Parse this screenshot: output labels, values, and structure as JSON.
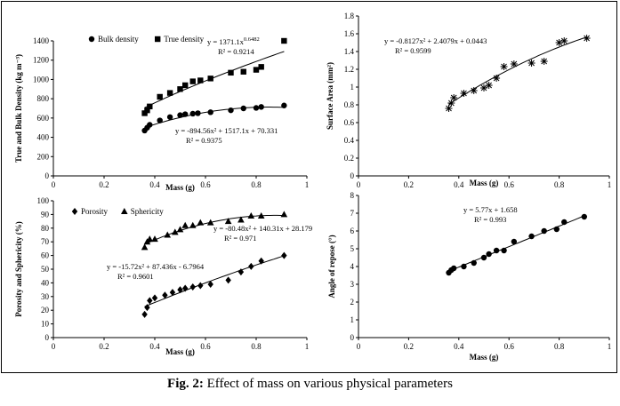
{
  "caption": {
    "label": "Fig. 2:",
    "text": " Effect of mass on various physical parameters"
  },
  "chart_data": [
    {
      "type": "scatter",
      "xlabel": "Mass (g)",
      "ylabel": "True and Bulk Density (kg m⁻³)",
      "xlim": [
        0,
        1
      ],
      "ylim": [
        0,
        1400
      ],
      "xticks": [
        "0",
        "0.2",
        "0.4",
        "0.6",
        "0.8",
        "1"
      ],
      "yticks": [
        "0",
        "200",
        "400",
        "600",
        "800",
        "1000",
        "1200",
        "1400"
      ],
      "grid": false,
      "legend": "top-left",
      "series": [
        {
          "name": "Bulk density",
          "marker": "circle",
          "x": [
            0.36,
            0.37,
            0.38,
            0.42,
            0.46,
            0.5,
            0.52,
            0.55,
            0.57,
            0.62,
            0.7,
            0.75,
            0.8,
            0.82,
            0.91
          ],
          "y": [
            470,
            500,
            530,
            575,
            610,
            630,
            640,
            645,
            650,
            660,
            680,
            700,
            705,
            715,
            730
          ],
          "fit": {
            "type": "poly2",
            "a": -894.56,
            "b": 1517.1,
            "c": 70.331
          }
        },
        {
          "name": "True density",
          "marker": "square",
          "x": [
            0.36,
            0.37,
            0.38,
            0.42,
            0.46,
            0.5,
            0.52,
            0.55,
            0.58,
            0.62,
            0.7,
            0.75,
            0.8,
            0.82,
            0.91
          ],
          "y": [
            650,
            680,
            720,
            820,
            860,
            900,
            940,
            980,
            990,
            1010,
            1070,
            1080,
            1100,
            1130,
            1400
          ],
          "fit": {
            "type": "power",
            "a": 1371.1,
            "b": 0.6482
          }
        }
      ],
      "annotations": [
        {
          "text": "y = 1371.1x",
          "sup": "0.6482",
          "line2": "R² = 0.9214"
        },
        {
          "text": "y = -894.56x² + 1517.1x + 70.331",
          "line2": "R² = 0.9375"
        }
      ]
    },
    {
      "type": "scatter",
      "xlabel": "Mass (g)",
      "ylabel": "Surface Area (mm²)",
      "xlim": [
        0,
        1
      ],
      "ylim": [
        0,
        1.8
      ],
      "xticks": [
        "0",
        "0.2",
        "0.4",
        "0.6",
        "0.8",
        "1"
      ],
      "yticks": [
        "0",
        "0.2",
        "0.4",
        "0.6",
        "0.8",
        "1",
        "1.2",
        "1.4",
        "1.6",
        "1.8"
      ],
      "grid": false,
      "series": [
        {
          "marker": "star",
          "x": [
            0.36,
            0.37,
            0.38,
            0.42,
            0.46,
            0.5,
            0.52,
            0.55,
            0.58,
            0.62,
            0.69,
            0.74,
            0.8,
            0.82,
            0.91
          ],
          "y": [
            0.76,
            0.82,
            0.88,
            0.93,
            0.96,
            0.99,
            1.02,
            1.1,
            1.23,
            1.26,
            1.27,
            1.29,
            1.5,
            1.52,
            1.55
          ],
          "fit": {
            "type": "poly2",
            "a": -0.8127,
            "b": 2.4079,
            "c": 0.0443
          }
        }
      ],
      "annotations": [
        {
          "text": "y = -0.8127x² + 2.4079x + 0.0443",
          "line2": "R² = 0.9599"
        }
      ]
    },
    {
      "type": "scatter",
      "xlabel": "Mass (g)",
      "ylabel": "Porosity and Sphericity (%)",
      "xlim": [
        0,
        1
      ],
      "ylim": [
        0,
        100
      ],
      "xticks": [
        "0",
        "0.2",
        "0.4",
        "0.6",
        "0.8",
        "1"
      ],
      "yticks": [
        "0",
        "10",
        "20",
        "30",
        "40",
        "50",
        "60",
        "70",
        "80",
        "90",
        "100"
      ],
      "grid": false,
      "legend": "top-left",
      "series": [
        {
          "name": "Porosity",
          "marker": "diamond",
          "x": [
            0.36,
            0.37,
            0.38,
            0.4,
            0.44,
            0.47,
            0.5,
            0.52,
            0.55,
            0.58,
            0.62,
            0.69,
            0.74,
            0.78,
            0.82,
            0.91
          ],
          "y": [
            17,
            22,
            27,
            29,
            31,
            33,
            35,
            36,
            37,
            38,
            39,
            42,
            48,
            52,
            56,
            60
          ],
          "fit": {
            "type": "poly2",
            "a": -15.72,
            "b": 87.436,
            "c": -6.7964
          }
        },
        {
          "name": "Sphericity",
          "marker": "triangle",
          "x": [
            0.36,
            0.37,
            0.38,
            0.4,
            0.45,
            0.48,
            0.5,
            0.52,
            0.55,
            0.58,
            0.62,
            0.69,
            0.74,
            0.78,
            0.82,
            0.91
          ],
          "y": [
            66,
            70,
            72,
            72,
            75,
            77,
            79,
            82,
            82,
            84,
            84,
            85,
            86,
            89,
            89,
            90
          ],
          "fit": {
            "type": "poly2",
            "a": -80.48,
            "b": 140.31,
            "c": 28.179
          }
        }
      ],
      "annotations": [
        {
          "text": "y = -80.48x² + 140.31x + 28.179",
          "line2": "R² = 0.971"
        },
        {
          "text": "y = -15.72x² + 87.436x - 6.7964",
          "line2": "R² = 0.9601"
        }
      ]
    },
    {
      "type": "scatter",
      "xlabel": "Mass (g)",
      "ylabel": "Angle of repose (°)",
      "xlim": [
        0,
        1
      ],
      "ylim": [
        0,
        8
      ],
      "xticks": [
        "0",
        "0.2",
        "0.4",
        "0.6",
        "0.8",
        "1"
      ],
      "yticks": [
        "0",
        "1",
        "2",
        "3",
        "4",
        "5",
        "6",
        "7",
        "8"
      ],
      "grid": false,
      "series": [
        {
          "marker": "circle",
          "x": [
            0.36,
            0.37,
            0.38,
            0.42,
            0.46,
            0.5,
            0.52,
            0.55,
            0.58,
            0.62,
            0.69,
            0.74,
            0.79,
            0.82,
            0.9
          ],
          "y": [
            3.65,
            3.8,
            3.9,
            4.0,
            4.2,
            4.5,
            4.7,
            4.9,
            4.9,
            5.4,
            5.7,
            6.0,
            6.1,
            6.5,
            6.8
          ],
          "fit": {
            "type": "linear",
            "a": 5.77,
            "b": 1.658
          }
        }
      ],
      "annotations": [
        {
          "text": "y = 5.77x + 1.658",
          "line2": "R² = 0.993"
        }
      ]
    }
  ]
}
